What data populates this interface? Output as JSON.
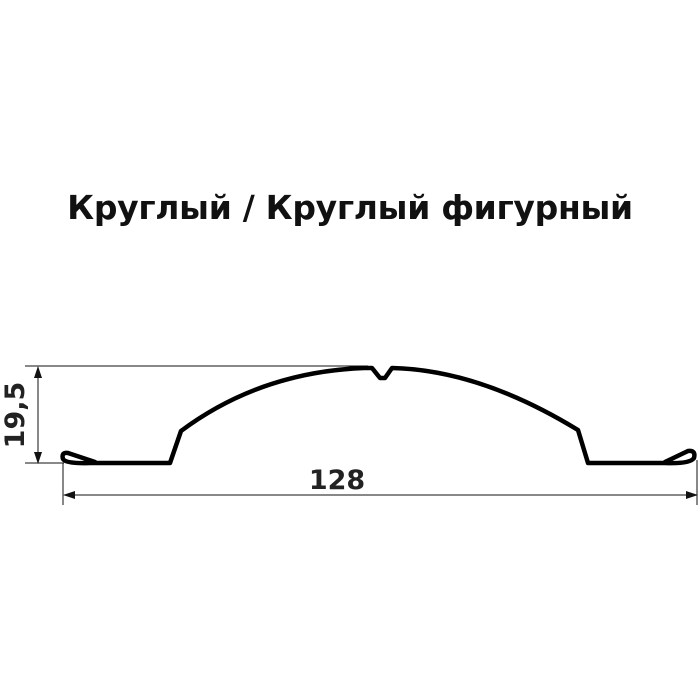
{
  "title": "Круглый / Круглый фигурный",
  "dimensions": {
    "height_label": "19,5",
    "width_label": "128"
  },
  "colors": {
    "profile": "#000000",
    "dimension_lines": "#111111"
  }
}
